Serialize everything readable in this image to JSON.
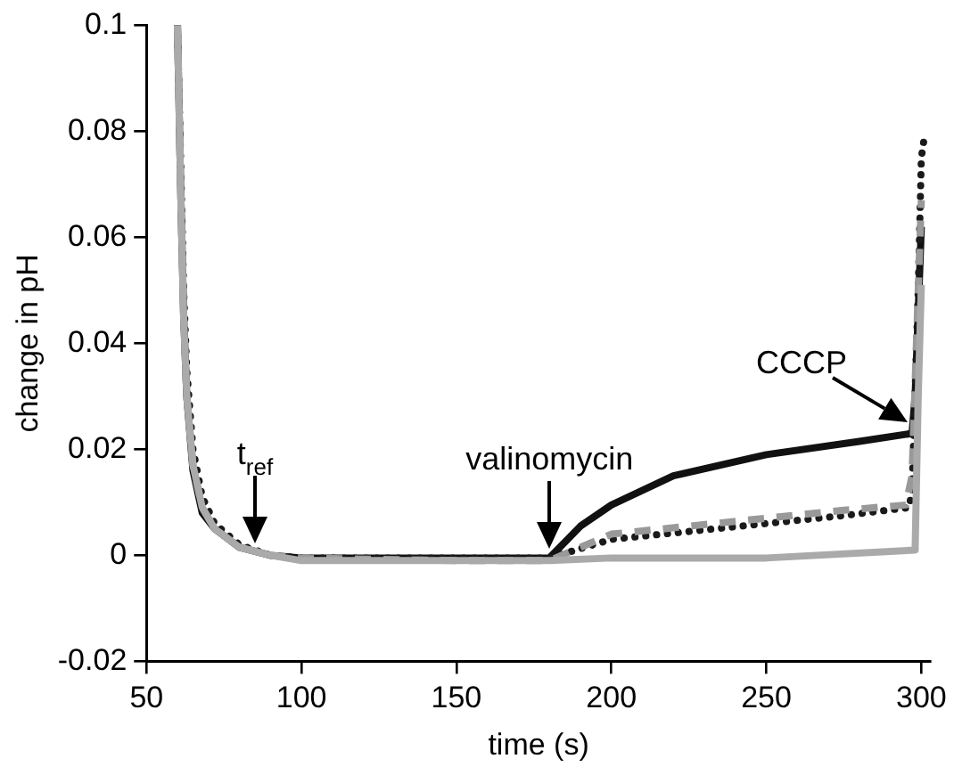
{
  "chart_data": {
    "type": "line",
    "xlabel": "time (s)",
    "ylabel": "change in pH",
    "xlim": [
      50,
      303
    ],
    "ylim": [
      -0.02,
      0.1
    ],
    "xticks": [
      50,
      100,
      150,
      200,
      250,
      300
    ],
    "yticks": [
      -0.02,
      0,
      0.02,
      0.04,
      0.06,
      0.08,
      0.1
    ],
    "grid": false,
    "legend": false,
    "marker": "none",
    "series": [
      {
        "color": "#aaaaaa",
        "line_style": "solid",
        "x": [
          60,
          61,
          62,
          63,
          65,
          68,
          72,
          80,
          90,
          100,
          150,
          180,
          200,
          250,
          298,
          299,
          300
        ],
        "values": [
          0.1,
          0.07,
          0.045,
          0.03,
          0.017,
          0.009,
          0.005,
          0.0015,
          0,
          -0.001,
          -0.001,
          -0.001,
          -0.0005,
          -0.0005,
          0.001,
          0.03,
          0.051
        ]
      },
      {
        "color": "#999999",
        "line_style": "dashed",
        "x": [
          60,
          61,
          62,
          63,
          65,
          68,
          72,
          80,
          90,
          100,
          150,
          180,
          200,
          225,
          250,
          275,
          295,
          297,
          299,
          300
        ],
        "values": [
          0.1,
          0.07,
          0.045,
          0.03,
          0.017,
          0.009,
          0.005,
          0.0015,
          0,
          -0.0005,
          -0.001,
          -0.001,
          0.004,
          0.0055,
          0.007,
          0.0085,
          0.0095,
          0.015,
          0.05,
          0.067
        ]
      },
      {
        "color": "#1a1a1a",
        "line_style": "dotted",
        "x": [
          60,
          61,
          62,
          63,
          65,
          68,
          72,
          80,
          90,
          100,
          150,
          180,
          200,
          225,
          250,
          275,
          296,
          297,
          299,
          300,
          301
        ],
        "values": [
          0.1,
          0.075,
          0.05,
          0.035,
          0.02,
          0.011,
          0.006,
          0.002,
          0,
          -0.0005,
          -0.0005,
          -0.0005,
          0.003,
          0.0045,
          0.006,
          0.0075,
          0.009,
          0.012,
          0.05,
          0.075,
          0.079
        ]
      },
      {
        "color": "#111111",
        "line_style": "solid",
        "x": [
          60,
          61,
          62,
          63,
          65,
          68,
          72,
          80,
          90,
          100,
          150,
          180,
          190,
          200,
          220,
          250,
          280,
          297,
          298,
          300
        ],
        "values": [
          0.1,
          0.07,
          0.045,
          0.03,
          0.016,
          0.008,
          0.005,
          0.0015,
          0,
          -0.0005,
          -0.0005,
          -0.0005,
          0.0055,
          0.0095,
          0.015,
          0.019,
          0.0215,
          0.023,
          0.03,
          0.062
        ]
      }
    ],
    "annotations": [
      {
        "text": "t$_{ref}$",
        "x": 85,
        "y": 0.001
      },
      {
        "text": "valinomycin",
        "x": 180,
        "y": 0
      },
      {
        "text": "CCCP",
        "x": 297,
        "y": 0.023
      }
    ]
  }
}
